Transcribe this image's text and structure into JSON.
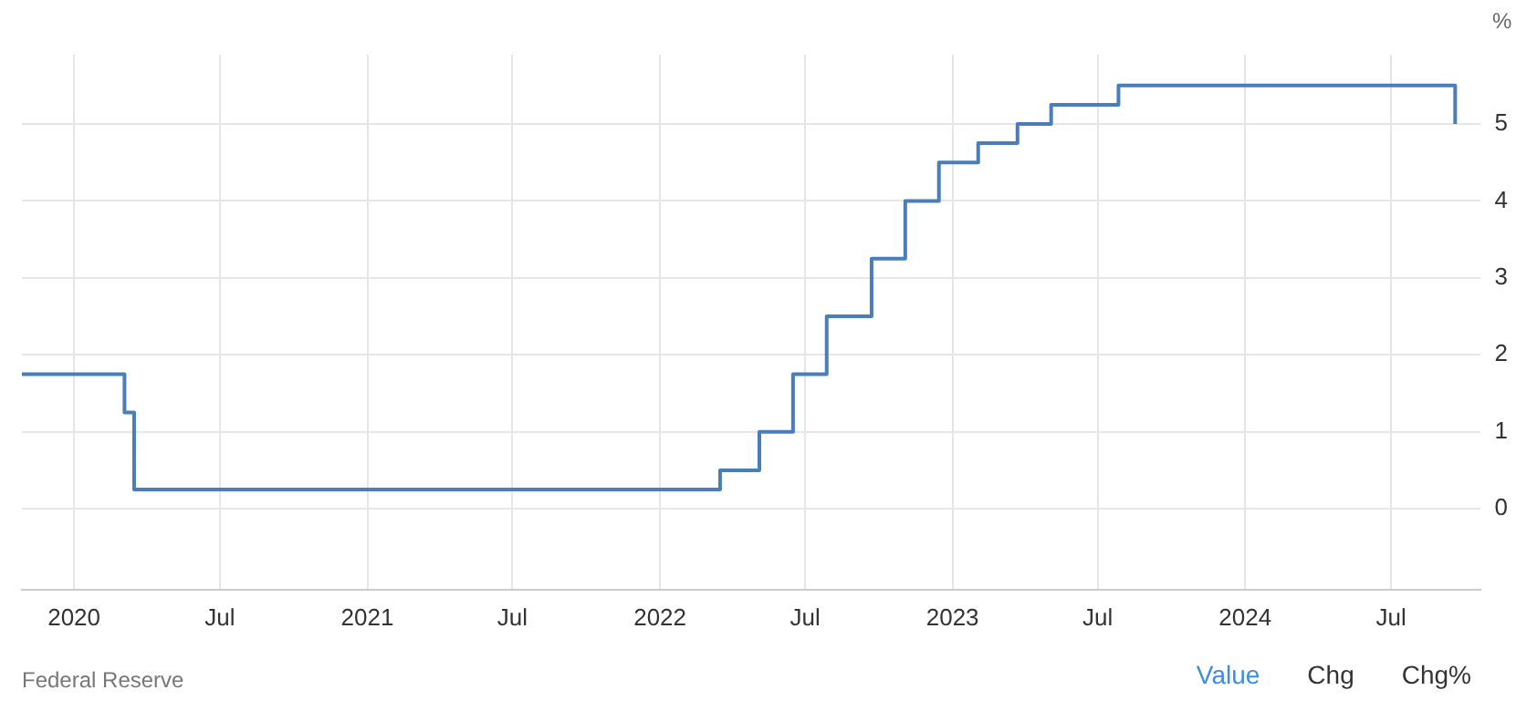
{
  "chart_data": {
    "type": "step",
    "ylabel": "%",
    "x": [
      "2019-10-28",
      "2020-03-04",
      "2020-03-16",
      "2022-03-17",
      "2022-05-05",
      "2022-06-16",
      "2022-07-28",
      "2022-09-22",
      "2022-11-03",
      "2022-12-15",
      "2023-02-02",
      "2023-03-23",
      "2023-05-04",
      "2023-07-27",
      "2024-09-19"
    ],
    "series": [
      {
        "color": "#4a7ebb",
        "values": [
          1.75,
          1.25,
          0.25,
          0.5,
          1.0,
          1.75,
          2.5,
          3.25,
          4.0,
          4.5,
          4.75,
          5.0,
          5.25,
          5.5,
          5.0
        ]
      }
    ],
    "xlim": [
      "2019-10-28",
      "2024-10-20"
    ],
    "xticks": [
      {
        "value": "2020-01-01",
        "label": "2020"
      },
      {
        "value": "2020-07-01",
        "label": "Jul"
      },
      {
        "value": "2021-01-01",
        "label": "2021"
      },
      {
        "value": "2021-07-01",
        "label": "Jul"
      },
      {
        "value": "2022-01-01",
        "label": "2022"
      },
      {
        "value": "2022-07-01",
        "label": "Jul"
      },
      {
        "value": "2023-01-01",
        "label": "2023"
      },
      {
        "value": "2023-07-01",
        "label": "Jul"
      },
      {
        "value": "2024-01-01",
        "label": "2024"
      },
      {
        "value": "2024-07-01",
        "label": "Jul"
      }
    ],
    "ylim": [
      -1.05,
      5.9
    ],
    "yticks": [
      0,
      1,
      2,
      3,
      4,
      5
    ],
    "grid": true,
    "legend": false,
    "marker": "none",
    "line_style": "solid",
    "annotations": [
      "Federal Reserve",
      "Value",
      "Chg",
      "Chg%"
    ]
  }
}
